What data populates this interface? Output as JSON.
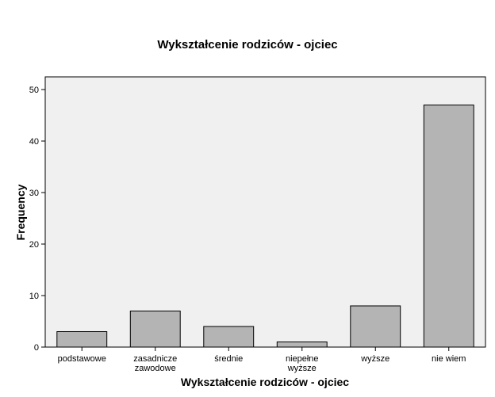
{
  "chart_data": {
    "type": "bar",
    "title": "Wykształcenie rodziców - ojciec",
    "xlabel": "Wykształcenie rodziców - ojciec",
    "ylabel": "Frequency",
    "categories": [
      [
        "podstawowe"
      ],
      [
        "zasadnicze",
        "zawodowe"
      ],
      [
        "średnie"
      ],
      [
        "niepełne",
        "wyższe"
      ],
      [
        "wyższe"
      ],
      [
        "nie wiem"
      ]
    ],
    "values": [
      3,
      7,
      4,
      1,
      8,
      47
    ],
    "ylim": [
      0,
      52
    ],
    "yticks": [
      0,
      10,
      20,
      30,
      40,
      50
    ],
    "grid": false,
    "colors": {
      "plot_background": "#f0f0f0",
      "bar_fill": "#b4b4b4",
      "bar_stroke": "#000000"
    }
  }
}
